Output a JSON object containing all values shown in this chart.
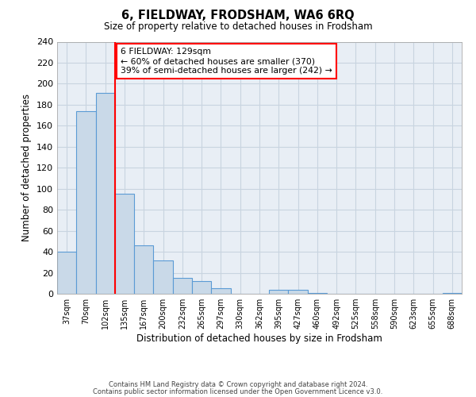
{
  "title": "6, FIELDWAY, FRODSHAM, WA6 6RQ",
  "subtitle": "Size of property relative to detached houses in Frodsham",
  "xlabel": "Distribution of detached houses by size in Frodsham",
  "ylabel": "Number of detached properties",
  "bin_labels": [
    "37sqm",
    "70sqm",
    "102sqm",
    "135sqm",
    "167sqm",
    "200sqm",
    "232sqm",
    "265sqm",
    "297sqm",
    "330sqm",
    "362sqm",
    "395sqm",
    "427sqm",
    "460sqm",
    "492sqm",
    "525sqm",
    "558sqm",
    "590sqm",
    "623sqm",
    "655sqm",
    "688sqm"
  ],
  "bar_heights": [
    40,
    174,
    191,
    95,
    46,
    32,
    15,
    12,
    5,
    0,
    0,
    4,
    4,
    1,
    0,
    0,
    0,
    0,
    0,
    0,
    1
  ],
  "bar_color": "#c9d9e8",
  "bar_edge_color": "#5b9bd5",
  "vline_x": 3,
  "vline_color": "red",
  "annotation_title": "6 FIELDWAY: 129sqm",
  "annotation_line1": "← 60% of detached houses are smaller (370)",
  "annotation_line2": "39% of semi-detached houses are larger (242) →",
  "ylim": [
    0,
    240
  ],
  "yticks": [
    0,
    20,
    40,
    60,
    80,
    100,
    120,
    140,
    160,
    180,
    200,
    220,
    240
  ],
  "footer_line1": "Contains HM Land Registry data © Crown copyright and database right 2024.",
  "footer_line2": "Contains public sector information licensed under the Open Government Licence v3.0.",
  "background_color": "#ffffff",
  "ax_facecolor": "#e8eef5",
  "grid_color": "#c8d4e0"
}
